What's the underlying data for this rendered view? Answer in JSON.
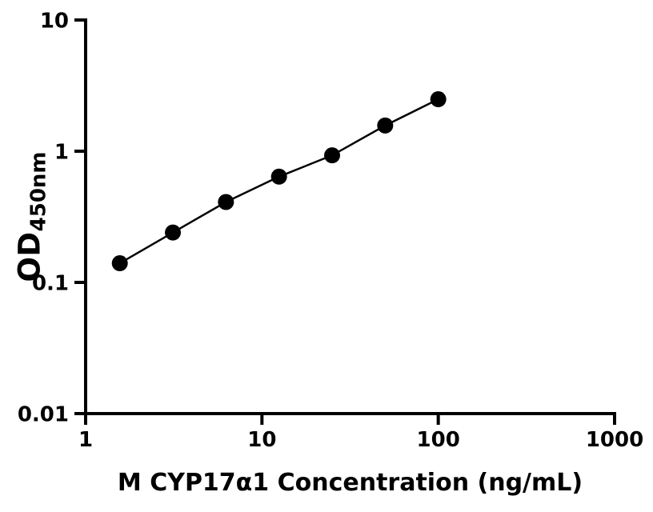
{
  "figure": {
    "background_color": "#ffffff",
    "foreground_color": "#000000"
  },
  "chart_data": {
    "type": "scatter",
    "title": "",
    "xlabel": "M CYP17α1 Concentration (ng/mL)",
    "ylabel_main": "OD",
    "ylabel_sub": "450nm",
    "x": [
      1.5625,
      3.125,
      6.25,
      12.5,
      25,
      50,
      100
    ],
    "y": [
      0.14,
      0.24,
      0.41,
      0.64,
      0.93,
      1.57,
      2.49
    ],
    "xscale": "log",
    "yscale": "log",
    "xlim": [
      1,
      1000
    ],
    "ylim": [
      0.01,
      10
    ],
    "x_ticks": [
      1,
      10,
      100,
      1000
    ],
    "x_tick_labels": [
      "1",
      "10",
      "100",
      "1000"
    ],
    "y_ticks": [
      0.01,
      0.1,
      1,
      10
    ],
    "y_tick_labels": [
      "0.01",
      "0.1",
      "1",
      "10"
    ],
    "grid": false,
    "legend": "none",
    "marker_color": "#000000",
    "line_color": "#000000",
    "axis_color": "#000000"
  }
}
